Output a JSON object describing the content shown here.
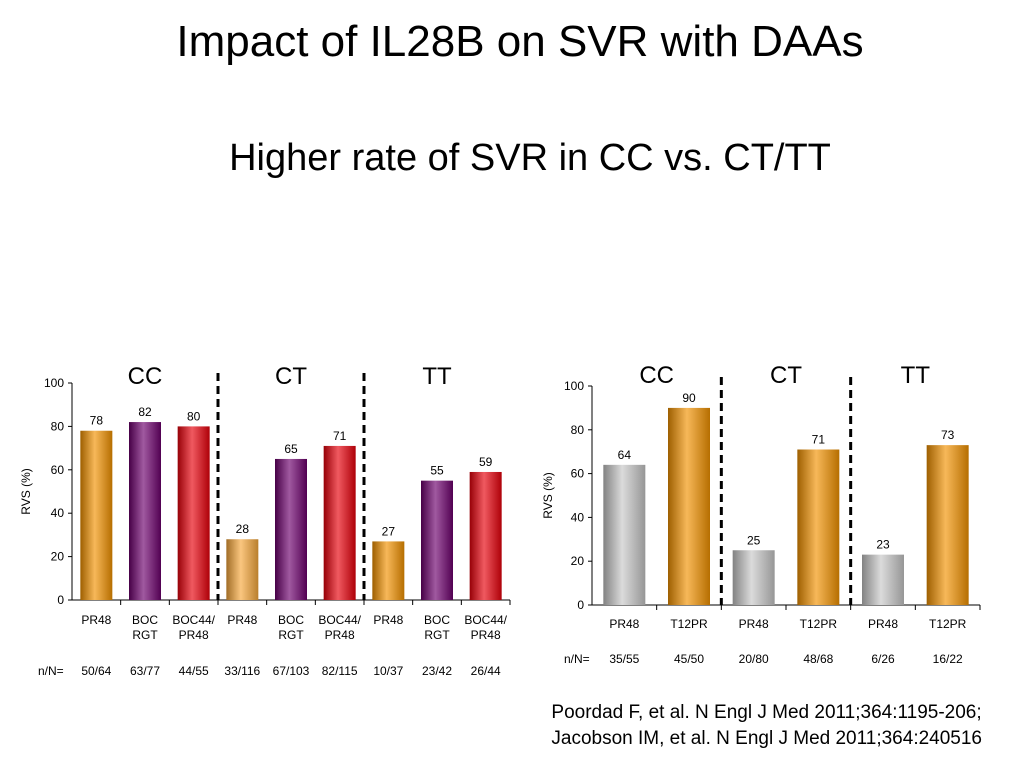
{
  "slide": {
    "title": "Impact of IL28B on SVR with DAAs",
    "subtitle": "Higher rate of SVR in CC vs. CT/TT",
    "citations": [
      "Poordad F, et al. N Engl J Med 2011;364:1195-206;",
      "Jacobson IM, et al. N Engl J Med 2011;364:240516"
    ]
  },
  "colors": {
    "orange": "#f39200",
    "purple": "#6d006d",
    "red": "#e8000a",
    "light_orange": "#f7a83a",
    "gray": "#c8c8c8"
  },
  "chart_data": [
    {
      "type": "bar",
      "ylabel": "RVS (%)",
      "ylim": [
        0,
        100
      ],
      "yticks": [
        0,
        20,
        40,
        60,
        80,
        100
      ],
      "nN_label": "n/N=",
      "groups": [
        {
          "label": "CC",
          "bars": [
            {
              "category": "PR48",
              "value": 78,
              "nN": "50/64",
              "color": "orange"
            },
            {
              "category": "BOC RGT",
              "value": 82,
              "nN": "63/77",
              "color": "purple"
            },
            {
              "category": "BOC44/ PR48",
              "value": 80,
              "nN": "44/55",
              "color": "red"
            }
          ]
        },
        {
          "label": "CT",
          "bars": [
            {
              "category": "PR48",
              "value": 28,
              "nN": "33/116",
              "color": "light_orange"
            },
            {
              "category": "BOC RGT",
              "value": 65,
              "nN": "67/103",
              "color": "purple"
            },
            {
              "category": "BOC44/ PR48",
              "value": 71,
              "nN": "82/115",
              "color": "red"
            }
          ]
        },
        {
          "label": "TT",
          "bars": [
            {
              "category": "PR48",
              "value": 27,
              "nN": "10/37",
              "color": "orange"
            },
            {
              "category": "BOC RGT",
              "value": 55,
              "nN": "23/42",
              "color": "purple"
            },
            {
              "category": "BOC44/ PR48",
              "value": 59,
              "nN": "26/44",
              "color": "red"
            }
          ]
        }
      ]
    },
    {
      "type": "bar",
      "ylabel": "RVS (%)",
      "ylim": [
        0,
        100
      ],
      "yticks": [
        0,
        20,
        40,
        60,
        80,
        100
      ],
      "nN_label": "n/N=",
      "groups": [
        {
          "label": "CC",
          "bars": [
            {
              "category": "PR48",
              "value": 64,
              "nN": "35/55",
              "color": "gray"
            },
            {
              "category": "T12PR",
              "value": 90,
              "nN": "45/50",
              "color": "orange"
            }
          ]
        },
        {
          "label": "CT",
          "bars": [
            {
              "category": "PR48",
              "value": 25,
              "nN": "20/80",
              "color": "gray"
            },
            {
              "category": "T12PR",
              "value": 71,
              "nN": "48/68",
              "color": "orange"
            }
          ]
        },
        {
          "label": "TT",
          "bars": [
            {
              "category": "PR48",
              "value": 23,
              "nN": "6/26",
              "color": "gray"
            },
            {
              "category": "T12PR",
              "value": 73,
              "nN": "16/22",
              "color": "orange"
            }
          ]
        }
      ]
    }
  ]
}
